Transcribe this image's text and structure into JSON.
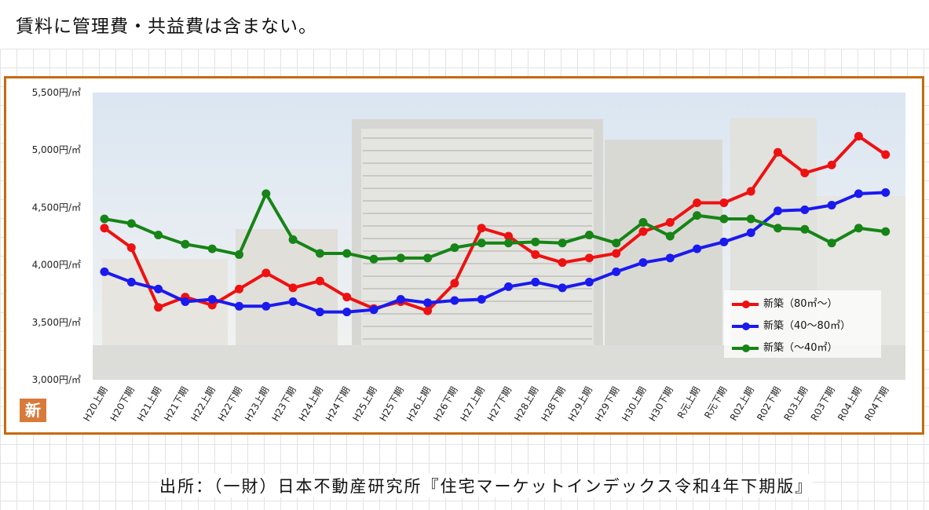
{
  "note": "賃料に管理費・共益費は含まない。",
  "source": "出所：（一財）日本不動産研究所『住宅マーケットインデックス令和4年下期版』",
  "badge": "新",
  "colors": {
    "frame": "#c8690e",
    "red": "#ee1111",
    "blue": "#1a1aee",
    "green": "#168416"
  },
  "chart_data": {
    "type": "line",
    "title": "",
    "xlabel": "",
    "ylabel": "",
    "ylim": [
      3000,
      5500
    ],
    "yticks": [
      "3,000円/㎡",
      "3,500円/㎡",
      "4,000円/㎡",
      "4,500円/㎡",
      "5,000円/㎡",
      "5,500円/㎡"
    ],
    "ytick_values": [
      3000,
      3500,
      4000,
      4500,
      5000,
      5500
    ],
    "grid": false,
    "legend_position": "bottom-right",
    "categories": [
      "H20上期",
      "H20下期",
      "H21上期",
      "H21下期",
      "H22上期",
      "H22下期",
      "H23上期",
      "H23下期",
      "H24上期",
      "H24下期",
      "H25上期",
      "H25下期",
      "H26上期",
      "H26下期",
      "H27上期",
      "H27下期",
      "H28上期",
      "H28下期",
      "H29上期",
      "H29下期",
      "H30上期",
      "H30下期",
      "R元上期",
      "R元下期",
      "R02上期",
      "R02下期",
      "R03上期",
      "R03下期",
      "R04上期",
      "R04下期"
    ],
    "series": [
      {
        "name": "新築（80㎡～）",
        "color": "#ee1111",
        "values": [
          4320,
          4150,
          3630,
          3720,
          3650,
          3790,
          3930,
          3800,
          3860,
          3720,
          3620,
          3680,
          3600,
          3840,
          4320,
          4250,
          4090,
          4020,
          4060,
          4100,
          4290,
          4370,
          4540,
          4540,
          4640,
          4980,
          4800,
          4870,
          5120,
          4960
        ]
      },
      {
        "name": "新築（40～80㎡）",
        "color": "#1a1aee",
        "values": [
          3940,
          3850,
          3790,
          3680,
          3700,
          3640,
          3640,
          3680,
          3590,
          3590,
          3610,
          3700,
          3670,
          3690,
          3700,
          3810,
          3850,
          3800,
          3850,
          3940,
          4020,
          4060,
          4140,
          4200,
          4280,
          4470,
          4480,
          4520,
          4620,
          4630
        ]
      },
      {
        "name": "新築（～40㎡）",
        "color": "#168416",
        "values": [
          4400,
          4360,
          4260,
          4180,
          4140,
          4090,
          4620,
          4220,
          4100,
          4100,
          4050,
          4060,
          4060,
          4150,
          4190,
          4190,
          4200,
          4190,
          4260,
          4190,
          4370,
          4250,
          4430,
          4400,
          4400,
          4320,
          4310,
          4190,
          4320,
          4290
        ]
      }
    ]
  }
}
